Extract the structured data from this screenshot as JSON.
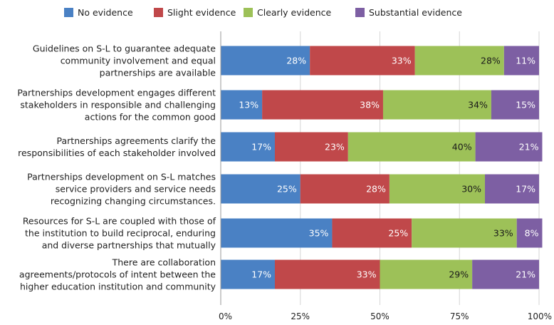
{
  "chart_data": {
    "type": "bar",
    "orientation": "horizontal",
    "stacked": true,
    "categories": [
      [
        "Guidelines on S-L to guarantee adequate",
        "community involvement and equal",
        "partnerships are available"
      ],
      [
        "Partnerships development engages different",
        "stakeholders in responsible and challenging",
        "actions for the common good"
      ],
      [
        "Partnerships agreements clarify the",
        "responsibilities of each stakeholder involved"
      ],
      [
        "Partnerships development on S-L matches",
        "service providers and service needs",
        "recognizing changing circumstances."
      ],
      [
        "Resources for S-L are coupled with those of",
        "the institution to build reciprocal, enduring",
        "and diverse partnerships that mutually"
      ],
      [
        "There are collaboration",
        "agreements/protocols of intent between the",
        "higher education institution and community"
      ]
    ],
    "series": [
      {
        "name": "No evidence",
        "color": "#4a81c4",
        "label_color": "#ffffff",
        "values": [
          28,
          13,
          17,
          25,
          35,
          17
        ]
      },
      {
        "name": "Slight evidence",
        "color": "#c0484a",
        "label_color": "#ffffff",
        "values": [
          33,
          38,
          23,
          28,
          25,
          33
        ]
      },
      {
        "name": "Clearly evidence",
        "color": "#9dc158",
        "label_color": "#1a1a1a",
        "values": [
          28,
          34,
          40,
          30,
          33,
          29
        ]
      },
      {
        "name": "Substantial evidence",
        "color": "#7d5fa3",
        "label_color": "#ffffff",
        "values": [
          11,
          15,
          21,
          17,
          8,
          21
        ]
      }
    ],
    "value_suffix": "%",
    "x_ticks": [
      0,
      25,
      50,
      75,
      100
    ],
    "x_tick_labels": [
      "0%",
      "25%",
      "50%",
      "75%",
      "100%"
    ],
    "xlim": [
      0,
      100
    ],
    "legend_position": "top",
    "grid": "vertical",
    "title": "",
    "xlabel": "",
    "ylabel": ""
  }
}
